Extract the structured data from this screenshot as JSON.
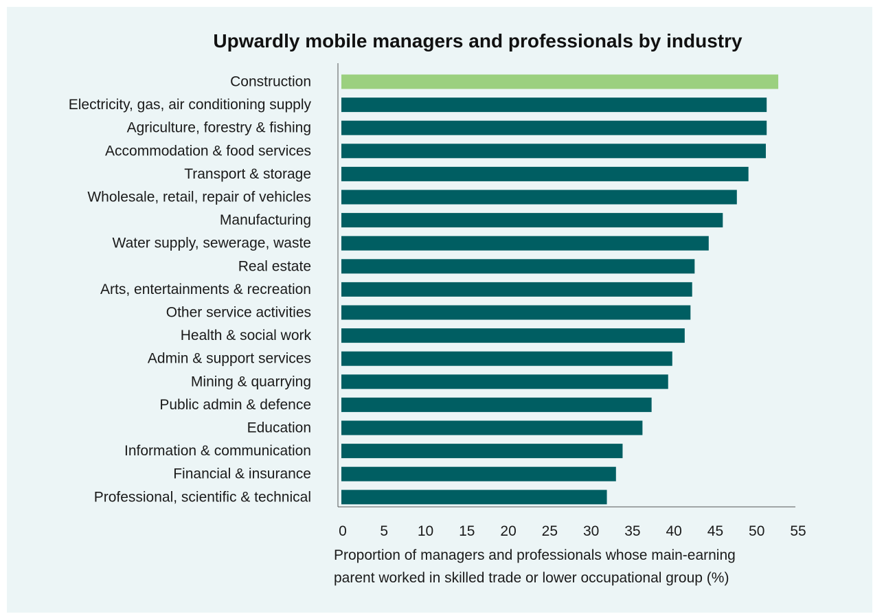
{
  "chart_data": {
    "type": "bar",
    "orientation": "horizontal",
    "title": "Upwardly mobile managers and professionals by industry",
    "xlabel_lines": [
      "Proportion of managers and professionals whose main-earning",
      "parent worked in skilled trade or lower occupational group (%)"
    ],
    "categories": [
      "Construction",
      "Electricity, gas, air conditioning supply",
      "Agriculture, forestry & fishing",
      "Accommodation & food services",
      "Transport & storage",
      "Wholesale, retail, repair of vehicles",
      "Manufacturing",
      "Water supply, sewerage, waste",
      "Real estate",
      "Arts, entertainments & recreation",
      "Other service activities",
      "Health & social work",
      "Admin & support services",
      "Mining & quarrying",
      "Public admin & defence",
      "Education",
      "Information & communication",
      "Financial & insurance",
      "Professional, scientific & technical"
    ],
    "values": [
      52.6,
      51.2,
      51.2,
      51.1,
      49.0,
      47.6,
      45.9,
      44.2,
      42.5,
      42.2,
      42.0,
      41.3,
      39.8,
      39.3,
      37.3,
      36.2,
      33.8,
      33.0,
      31.9
    ],
    "highlight_index": 0,
    "colors": {
      "highlight": "#9bd07f",
      "bar": "#005e62",
      "background": "#ecf5f6"
    },
    "xlim": [
      0,
      55
    ],
    "xticks": [
      "0",
      "5",
      "10",
      "15",
      "20",
      "25",
      "30",
      "35",
      "40",
      "45",
      "50",
      "55"
    ],
    "grid": false,
    "legend": "none"
  }
}
